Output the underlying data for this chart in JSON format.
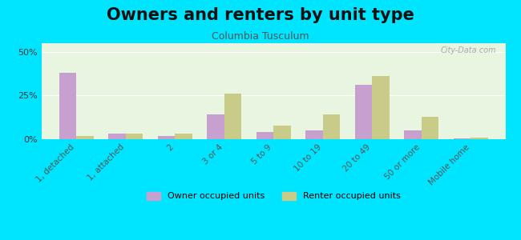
{
  "title": "Owners and renters by unit type",
  "subtitle": "Columbia Tusculum",
  "categories": [
    "1, detached",
    "1, attached",
    "2",
    "3 or 4",
    "5 to 9",
    "10 to 19",
    "20 to 49",
    "50 or more",
    "Mobile home"
  ],
  "owner_values": [
    38,
    3,
    2,
    14,
    4,
    5,
    31,
    5,
    0.5
  ],
  "renter_values": [
    2,
    3,
    3,
    26,
    8,
    14,
    36,
    13,
    1
  ],
  "owner_color": "#c8a0d0",
  "renter_color": "#c8cc88",
  "background_color": "#00e5ff",
  "plot_bg_gradient_top": "#f5fff5",
  "plot_bg_gradient_bottom": "#e8f5e0",
  "ylim": [
    0,
    55
  ],
  "yticks": [
    0,
    25,
    50
  ],
  "ytick_labels": [
    "0%",
    "25%",
    "50%"
  ],
  "bar_width": 0.35,
  "title_fontsize": 15,
  "subtitle_fontsize": 9,
  "legend_labels": [
    "Owner occupied units",
    "Renter occupied units"
  ],
  "watermark": "City-Data.com"
}
